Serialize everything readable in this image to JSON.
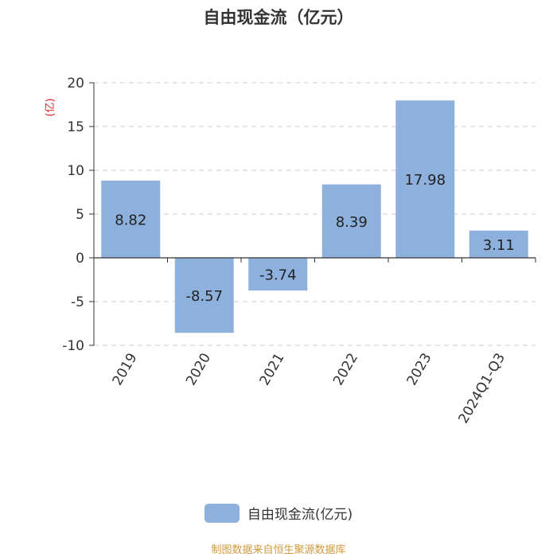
{
  "title": "自由现金流（亿元）",
  "unit_label": "(亿)",
  "source": "制图数据来自恒生聚源数据库",
  "colors": {
    "bar": "#8eb0dd",
    "unit": "#e02020",
    "source": "#d09a3c",
    "axis": "#333333",
    "grid": "#cccccc"
  },
  "chart_data": {
    "type": "bar",
    "title": "自由现金流（亿元）",
    "categories": [
      "2019",
      "2020",
      "2021",
      "2022",
      "2023",
      "2024Q1-Q3"
    ],
    "series": [
      {
        "name": "自由现金流(亿元)",
        "values": [
          8.82,
          -8.57,
          -3.74,
          8.39,
          17.98,
          3.11
        ],
        "labels": [
          "8.82",
          "-8.57",
          "-3.74",
          "8.39",
          "17.98",
          "3.11"
        ]
      }
    ],
    "ylabel": "(亿)",
    "ylim": [
      -10,
      20
    ],
    "yticks": [
      -10,
      -5,
      0,
      5,
      10,
      15,
      20
    ],
    "grid": true,
    "legend": "bottom"
  }
}
